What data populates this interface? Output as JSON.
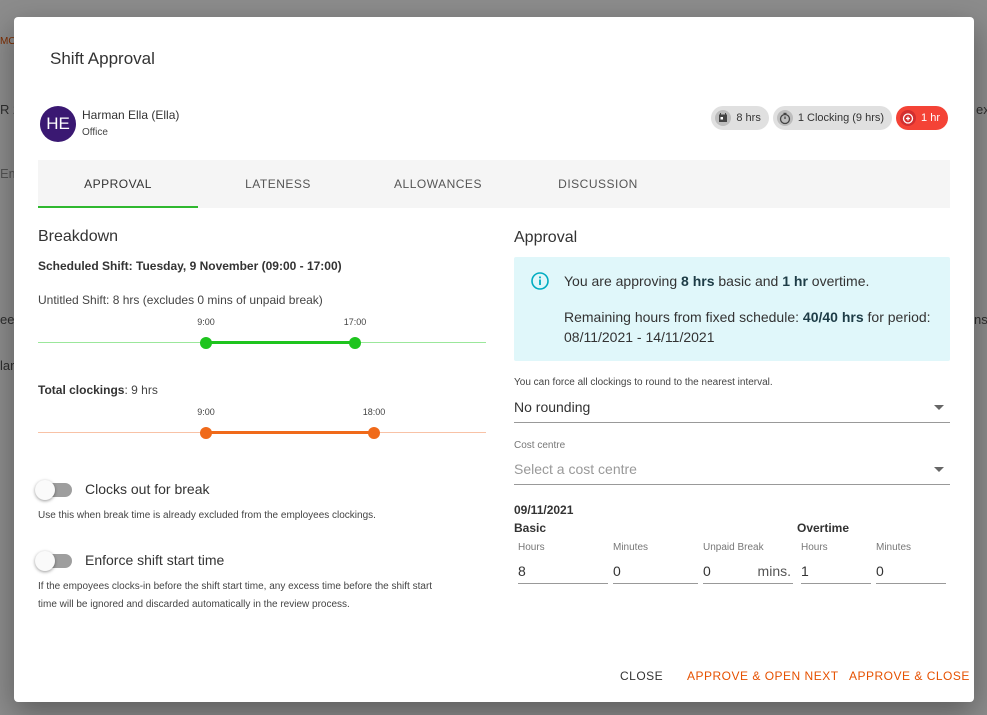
{
  "dialog": {
    "title": "Shift Approval"
  },
  "employee": {
    "initials": "HE",
    "name": "Harman Ella (Ella)",
    "department": "Office"
  },
  "chips": [
    {
      "icon": "calendar-icon",
      "label": "8 hrs"
    },
    {
      "icon": "stopwatch-icon",
      "label": "1 Clocking (9 hrs)"
    },
    {
      "icon": "alarm-add-icon",
      "label": "1 hr"
    }
  ],
  "tabs": [
    "APPROVAL",
    "LATENESS",
    "ALLOWANCES",
    "DISCUSSION"
  ],
  "breakdown": {
    "title": "Breakdown",
    "scheduled_shift": "Scheduled Shift: Tuesday, 9 November (09:00 - 17:00)",
    "untitled_shift": "Untitled Shift: 8 hrs (excludes 0 mins of unpaid break)",
    "shift_timeline": {
      "start": "9:00",
      "end": "17:00",
      "color": "#1ec41e"
    },
    "total_clockings_label": "Total clockings",
    "total_clockings_value": ": 9 hrs",
    "clock_timeline": {
      "start": "9:00",
      "end": "18:00",
      "color": "#f06a1a"
    }
  },
  "options": {
    "clocks_out_label": "Clocks out for break",
    "clocks_out_help": "Use this when break time is already excluded from the employees clockings.",
    "enforce_label": "Enforce shift start time",
    "enforce_help_1": "If the empoyees clocks-in before the shift start time, any excess time before the shift start",
    "enforce_help_2": "time will be ignored and discarded automatically in the review process."
  },
  "approval": {
    "title": "Approval",
    "info_pre": "You are approving ",
    "info_basic": "8 hrs",
    "info_mid": " basic and ",
    "info_overtime": "1 hr",
    "info_post": " overtime.",
    "remaining_pre": "Remaining hours from fixed schedule: ",
    "remaining_val": "40/40 hrs",
    "remaining_post": " for period:",
    "period": "08/11/2021 - 14/11/2021",
    "rounding_help": "You can force all clockings to round to the nearest interval.",
    "rounding_value": "No rounding",
    "cost_centre_label": "Cost centre",
    "cost_centre_placeholder": "Select a cost centre",
    "date": "09/11/2021",
    "basic_label": "Basic",
    "overtime_label": "Overtime",
    "hours_label": "Hours",
    "minutes_label": "Minutes",
    "unpaid_break_label": "Unpaid Break",
    "basic_hours": "8",
    "basic_minutes": "0",
    "unpaid_break": "0",
    "unpaid_suffix": "mins.",
    "ot_hours": "1",
    "ot_minutes": "0"
  },
  "footer": {
    "close": "CLOSE",
    "approve_next": "APPROVE & OPEN NEXT",
    "approve_close": "APPROVE & CLOSE"
  },
  "colors": {
    "accent": "#e65100",
    "tab_indicator": "#2fb82f",
    "chip_alert": "#f44336",
    "info_bg": "#e0f7fa",
    "avatar": "#3a1872"
  }
}
